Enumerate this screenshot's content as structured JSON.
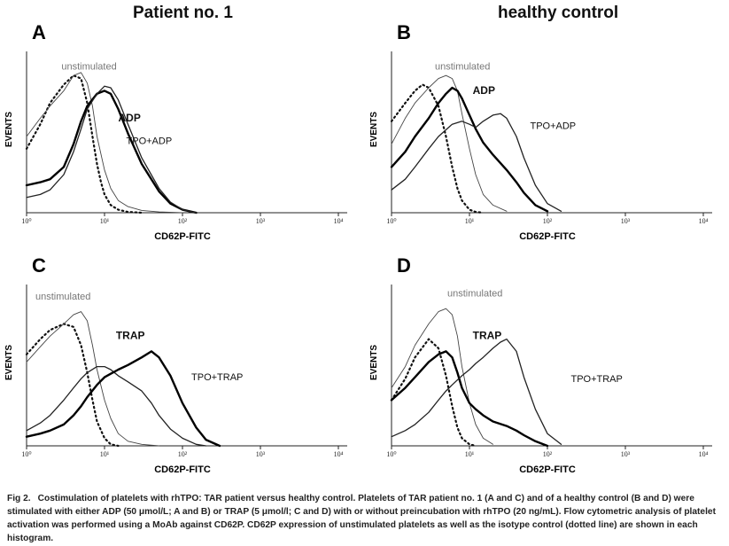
{
  "columns": [
    "Patient no. 1",
    "healthy control"
  ],
  "caption": {
    "label": "Fig 2.",
    "text": "Costimulation of platelets with rhTPO: TAR patient versus healthy control. Platelets of TAR patient no. 1 (A and C) and of a healthy control (B and D) were stimulated with either ADP (50 μmol/L; A and B) or TRAP (5 μmol/l; C and D) with or without preincubation with rhTPO (20 ng/mL). Flow cytometric analysis of platelet activation was performed using a MoAb against CD62P. CD62P expression of unstimulated platelets as well as the isotype control (dotted line) are shown in each histogram."
  },
  "chart_data": [
    {
      "type": "line",
      "panel": "A",
      "xlabel": "CD62P-FITC",
      "ylabel": "EVENTS",
      "xscale": "log",
      "xlim": [
        1,
        10000
      ],
      "ylim": [
        0,
        1
      ],
      "xticks": [
        "10⁰",
        "10¹",
        "10²",
        "10³",
        "10⁴"
      ],
      "series": [
        {
          "name": "isotype control",
          "style": "dotted",
          "x": [
            1,
            1.5,
            2,
            3,
            4,
            5,
            6,
            7,
            8,
            9,
            10,
            12,
            15,
            20,
            30
          ],
          "y": [
            0.42,
            0.58,
            0.72,
            0.84,
            0.9,
            0.88,
            0.72,
            0.5,
            0.32,
            0.2,
            0.12,
            0.05,
            0.02,
            0.005,
            0
          ]
        },
        {
          "name": "unstimulated",
          "style": "thin",
          "x": [
            1,
            1.5,
            2,
            3,
            4,
            5,
            6,
            7,
            8,
            10,
            12,
            15,
            20,
            30,
            50,
            100
          ],
          "y": [
            0.5,
            0.62,
            0.7,
            0.8,
            0.9,
            0.92,
            0.85,
            0.7,
            0.5,
            0.28,
            0.16,
            0.08,
            0.04,
            0.015,
            0.005,
            0
          ]
        },
        {
          "name": "ADP",
          "style": "thick",
          "x": [
            1,
            1.5,
            2,
            3,
            4,
            5,
            6,
            8,
            10,
            12,
            15,
            20,
            30,
            50,
            70,
            100,
            150
          ],
          "y": [
            0.18,
            0.2,
            0.22,
            0.3,
            0.45,
            0.6,
            0.7,
            0.78,
            0.8,
            0.78,
            0.68,
            0.52,
            0.32,
            0.14,
            0.06,
            0.02,
            0
          ]
        },
        {
          "name": "TPO+ADP",
          "style": "medium",
          "x": [
            1,
            1.5,
            2,
            3,
            4,
            5,
            6,
            8,
            10,
            12,
            15,
            20,
            30,
            50,
            70,
            100,
            150
          ],
          "y": [
            0.1,
            0.12,
            0.15,
            0.25,
            0.4,
            0.55,
            0.68,
            0.78,
            0.83,
            0.82,
            0.74,
            0.58,
            0.36,
            0.16,
            0.07,
            0.02,
            0
          ]
        }
      ],
      "annotations": [
        {
          "text": "unstimulated",
          "x": 2.8,
          "y": 0.94,
          "style": "light"
        },
        {
          "text": "ADP",
          "x": 15,
          "y": 0.6,
          "style": "bold"
        },
        {
          "text": "TPO+ADP",
          "x": 19,
          "y": 0.45,
          "style": "normal"
        }
      ]
    },
    {
      "type": "line",
      "panel": "B",
      "xlabel": "CD62P-FITC",
      "ylabel": "EVENTS",
      "xscale": "log",
      "xlim": [
        1,
        10000
      ],
      "ylim": [
        0,
        1
      ],
      "xticks": [
        "10⁰",
        "10¹",
        "10²",
        "10³",
        "10⁴"
      ],
      "series": [
        {
          "name": "isotype control",
          "style": "dotted",
          "x": [
            1,
            1.5,
            2,
            2.5,
            3,
            4,
            5,
            6,
            7,
            8,
            10,
            12,
            15
          ],
          "y": [
            0.6,
            0.72,
            0.8,
            0.84,
            0.82,
            0.7,
            0.5,
            0.3,
            0.16,
            0.08,
            0.02,
            0.005,
            0
          ]
        },
        {
          "name": "unstimulated",
          "style": "thin",
          "x": [
            1,
            1.5,
            2,
            3,
            4,
            5,
            6,
            7,
            8,
            10,
            12,
            15,
            20,
            30
          ],
          "y": [
            0.45,
            0.62,
            0.72,
            0.82,
            0.88,
            0.9,
            0.88,
            0.8,
            0.65,
            0.42,
            0.25,
            0.12,
            0.05,
            0.01
          ]
        },
        {
          "name": "ADP",
          "style": "thick",
          "x": [
            1,
            1.5,
            2,
            3,
            4,
            5,
            6,
            7,
            8,
            10,
            12,
            15,
            20,
            30,
            40,
            50,
            70,
            100
          ],
          "y": [
            0.3,
            0.4,
            0.5,
            0.62,
            0.72,
            0.78,
            0.82,
            0.8,
            0.75,
            0.64,
            0.55,
            0.46,
            0.38,
            0.28,
            0.2,
            0.13,
            0.05,
            0.01
          ]
        },
        {
          "name": "TPO+ADP",
          "style": "medium",
          "x": [
            1,
            1.5,
            2,
            3,
            4,
            6,
            8,
            10,
            12,
            15,
            20,
            25,
            30,
            40,
            50,
            70,
            100,
            150
          ],
          "y": [
            0.15,
            0.22,
            0.3,
            0.42,
            0.5,
            0.58,
            0.6,
            0.58,
            0.56,
            0.6,
            0.64,
            0.65,
            0.62,
            0.5,
            0.36,
            0.18,
            0.06,
            0.01
          ]
        }
      ],
      "annotations": [
        {
          "text": "unstimulated",
          "x": 3.6,
          "y": 0.94,
          "style": "light"
        },
        {
          "text": "ADP",
          "x": 11,
          "y": 0.78,
          "style": "bold"
        },
        {
          "text": "TPO+ADP",
          "x": 60,
          "y": 0.55,
          "style": "normal"
        }
      ]
    },
    {
      "type": "line",
      "panel": "C",
      "xlabel": "CD62P-FITC",
      "ylabel": "EVENTS",
      "xscale": "log",
      "xlim": [
        1,
        10000
      ],
      "ylim": [
        0,
        1
      ],
      "xticks": [
        "10⁰",
        "10¹",
        "10²",
        "10³",
        "10⁴"
      ],
      "series": [
        {
          "name": "isotype control",
          "style": "dotted",
          "x": [
            1,
            1.5,
            2,
            3,
            4,
            5,
            6,
            7,
            8,
            10,
            12,
            15
          ],
          "y": [
            0.6,
            0.7,
            0.76,
            0.8,
            0.78,
            0.66,
            0.48,
            0.3,
            0.16,
            0.05,
            0.01,
            0
          ]
        },
        {
          "name": "unstimulated",
          "style": "thin",
          "x": [
            1,
            1.5,
            2,
            3,
            4,
            5,
            6,
            7,
            8,
            10,
            12,
            15,
            20,
            30,
            50
          ],
          "y": [
            0.55,
            0.65,
            0.72,
            0.8,
            0.86,
            0.88,
            0.82,
            0.66,
            0.5,
            0.3,
            0.18,
            0.08,
            0.03,
            0.01,
            0
          ]
        },
        {
          "name": "TRAP",
          "style": "medium",
          "x": [
            1,
            1.5,
            2,
            3,
            4,
            5,
            6,
            8,
            10,
            12,
            15,
            20,
            30,
            40,
            50,
            70,
            100,
            150,
            200
          ],
          "y": [
            0.1,
            0.15,
            0.2,
            0.3,
            0.38,
            0.44,
            0.48,
            0.52,
            0.52,
            0.5,
            0.46,
            0.42,
            0.36,
            0.28,
            0.2,
            0.11,
            0.05,
            0.01,
            0
          ]
        },
        {
          "name": "TPO+TRAP",
          "style": "thick",
          "x": [
            1,
            1.5,
            2,
            3,
            4,
            5,
            6,
            8,
            10,
            15,
            20,
            30,
            40,
            50,
            70,
            100,
            150,
            200,
            300
          ],
          "y": [
            0.06,
            0.08,
            0.1,
            0.14,
            0.2,
            0.26,
            0.32,
            0.4,
            0.45,
            0.5,
            0.53,
            0.58,
            0.62,
            0.58,
            0.46,
            0.28,
            0.12,
            0.04,
            0
          ]
        }
      ],
      "annotations": [
        {
          "text": "unstimulated",
          "x": 1.3,
          "y": 0.96,
          "style": "light"
        },
        {
          "text": "TRAP",
          "x": 14,
          "y": 0.7,
          "style": "bold"
        },
        {
          "text": "TPO+TRAP",
          "x": 130,
          "y": 0.43,
          "style": "normal"
        }
      ]
    },
    {
      "type": "line",
      "panel": "D",
      "xlabel": "CD62P-FITC",
      "ylabel": "EVENTS",
      "xscale": "log",
      "xlim": [
        1,
        10000
      ],
      "ylim": [
        0,
        1
      ],
      "xticks": [
        "10⁰",
        "10¹",
        "10²",
        "10³",
        "10⁴"
      ],
      "series": [
        {
          "name": "isotype control",
          "style": "dotted",
          "x": [
            1,
            1.5,
            2,
            3,
            4,
            5,
            6,
            7,
            8,
            10,
            12
          ],
          "y": [
            0.3,
            0.44,
            0.58,
            0.7,
            0.64,
            0.46,
            0.26,
            0.12,
            0.05,
            0.01,
            0
          ]
        },
        {
          "name": "unstimulated",
          "style": "thin",
          "x": [
            1,
            1.5,
            2,
            3,
            4,
            5,
            6,
            7,
            8,
            10,
            12,
            15,
            20
          ],
          "y": [
            0.38,
            0.52,
            0.66,
            0.8,
            0.88,
            0.9,
            0.86,
            0.72,
            0.52,
            0.28,
            0.14,
            0.05,
            0.01
          ]
        },
        {
          "name": "TRAP",
          "style": "thick",
          "x": [
            1,
            1.5,
            2,
            3,
            4,
            5,
            6,
            7,
            8,
            10,
            12,
            15,
            20,
            30,
            40,
            50,
            70,
            100
          ],
          "y": [
            0.3,
            0.38,
            0.45,
            0.55,
            0.6,
            0.62,
            0.58,
            0.48,
            0.38,
            0.28,
            0.24,
            0.2,
            0.16,
            0.13,
            0.1,
            0.07,
            0.03,
            0
          ]
        },
        {
          "name": "TPO+TRAP",
          "style": "medium",
          "x": [
            1,
            1.5,
            2,
            3,
            4,
            5,
            6,
            8,
            10,
            12,
            15,
            20,
            25,
            30,
            40,
            50,
            70,
            100,
            150
          ],
          "y": [
            0.06,
            0.1,
            0.14,
            0.22,
            0.3,
            0.36,
            0.4,
            0.46,
            0.5,
            0.54,
            0.58,
            0.64,
            0.68,
            0.7,
            0.62,
            0.45,
            0.24,
            0.08,
            0.01
          ]
        }
      ],
      "annotations": [
        {
          "text": "unstimulated",
          "x": 5.2,
          "y": 0.98,
          "style": "light"
        },
        {
          "text": "TRAP",
          "x": 11,
          "y": 0.7,
          "style": "bold"
        },
        {
          "text": "TPO+TRAP",
          "x": 200,
          "y": 0.42,
          "style": "normal"
        }
      ]
    }
  ]
}
